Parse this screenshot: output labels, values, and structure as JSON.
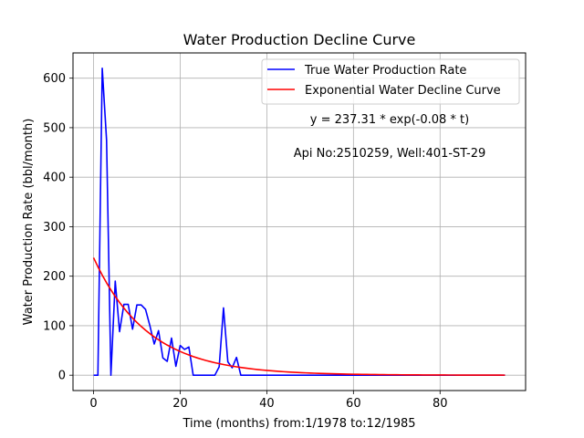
{
  "chart_data": {
    "type": "line",
    "title": "Water Production Decline Curve",
    "xlabel": "Time (months) from:1/1978 to:12/1985",
    "ylabel": "Water Production Rate (bbl/month)",
    "xlim": [
      -4.75,
      99.75
    ],
    "ylim": [
      -31,
      651
    ],
    "xticks": [
      0,
      20,
      40,
      60,
      80
    ],
    "yticks": [
      0,
      100,
      200,
      300,
      400,
      500,
      600
    ],
    "grid": true,
    "legend_position": "top-right",
    "annotations": [
      "y = 237.31 * exp(-0.08 * t)",
      "Api No:2510259, Well:401-ST-29"
    ],
    "series": [
      {
        "name": "True Water Production Rate",
        "color": "#0000ff",
        "x": [
          0,
          1,
          2,
          3,
          4,
          5,
          6,
          7,
          8,
          9,
          10,
          11,
          12,
          13,
          14,
          15,
          16,
          17,
          18,
          19,
          20,
          21,
          22,
          23,
          24,
          25,
          26,
          27,
          28,
          29,
          30,
          31,
          32,
          33,
          34,
          35,
          40,
          50,
          60,
          70,
          80,
          90,
          95
        ],
        "y": [
          0,
          0,
          620,
          475,
          0,
          190,
          88,
          143,
          143,
          93,
          142,
          142,
          133,
          100,
          63,
          90,
          35,
          28,
          75,
          18,
          60,
          52,
          57,
          0,
          0,
          0,
          0,
          0,
          0,
          17,
          136,
          27,
          15,
          36,
          0,
          0,
          0,
          0,
          0,
          0,
          0,
          0,
          0
        ]
      },
      {
        "name": "Exponential Water Decline Curve",
        "color": "#ff0000",
        "a": 237.31,
        "b": -0.08,
        "x_range": [
          0,
          95
        ]
      }
    ]
  }
}
